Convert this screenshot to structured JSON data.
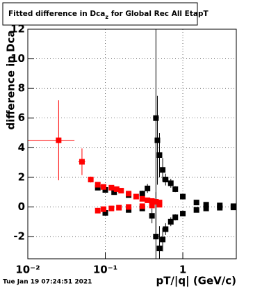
{
  "chart_data": {
    "type": "scatter",
    "title": [
      "Fitted difference in Dca",
      "z",
      " for Global Rec All EtapT"
    ],
    "ylabel": "difference in Dca",
    "xlabel": "pT/|q| (GeV/c)",
    "footer": "Tue Jan 19 07:24:51 2021",
    "xscale": "log",
    "grid": true,
    "xlim": [
      0.01,
      4.9
    ],
    "ylim": [
      -3.5,
      12
    ],
    "xticks": [
      {
        "value": 0.01,
        "label": "10⁻²"
      },
      {
        "value": 0.1,
        "label": "10⁻¹"
      },
      1
    ],
    "yticks": [
      -2,
      0,
      2,
      4,
      6,
      8,
      10,
      12
    ],
    "series": [
      {
        "name": "black",
        "color": "#000000",
        "x": [
          0.08,
          0.1,
          0.13,
          0.2,
          0.3,
          0.35,
          0.45,
          0.47,
          0.5,
          0.55,
          0.6,
          0.7,
          0.8,
          1.0,
          1.5,
          2,
          3,
          4.5,
          0.1,
          0.2,
          0.3,
          0.4,
          0.45,
          0.5,
          0.55,
          0.6,
          0.7,
          0.8,
          1.0,
          1.5,
          2,
          3,
          4.5
        ],
        "values": [
          1.3,
          1.15,
          1.0,
          0.8,
          0.9,
          1.25,
          6,
          4.5,
          3.5,
          2.5,
          1.85,
          1.6,
          1.2,
          0.7,
          0.3,
          0.15,
          0.1,
          0.05,
          -0.4,
          -0.2,
          -0.1,
          -0.6,
          -2,
          -2.8,
          -2.2,
          -1.5,
          -1.0,
          -0.7,
          -0.45,
          -0.2,
          -0.1,
          -0.05,
          -0.03
        ],
        "yerr": [
          0.1,
          0.1,
          0.1,
          0.1,
          0.2,
          0.3,
          8,
          3,
          1.5,
          0.8,
          0.4,
          0.3,
          0.2,
          0.1,
          0.1,
          0.05,
          0.05,
          0.05,
          0.1,
          0.1,
          0.1,
          0.5,
          3,
          1.5,
          0.8,
          0.4,
          0.3,
          0.2,
          0.1,
          0.1,
          0.05,
          0.05,
          0.05
        ]
      },
      {
        "name": "red",
        "color": "#ff0000",
        "x": [
          0.025,
          0.05,
          0.065,
          0.08,
          0.095,
          0.12,
          0.14,
          0.16,
          0.2,
          0.25,
          0.3,
          0.35,
          0.4,
          0.45,
          0.5,
          0.08,
          0.095,
          0.12,
          0.15,
          0.2,
          0.3,
          0.4,
          0.5
        ],
        "values": [
          4.5,
          3.05,
          1.85,
          1.5,
          1.35,
          1.3,
          1.2,
          1.1,
          0.9,
          0.7,
          0.55,
          0.45,
          0.4,
          0.35,
          0.3,
          -0.25,
          -0.15,
          -0.1,
          -0.05,
          0,
          0.05,
          0.1,
          0.15
        ],
        "yerr": [
          2.7,
          0.9,
          0.2,
          0.1,
          0.1,
          0.1,
          0.1,
          0.1,
          0.1,
          0.1,
          0.1,
          0.1,
          0.1,
          0.1,
          0.1,
          0.1,
          0.1,
          0.1,
          0.1,
          0.1,
          0.1,
          0.1,
          0.1
        ],
        "xerr": [
          0.015,
          0.005,
          null,
          null,
          null,
          null,
          null,
          null,
          null,
          null,
          null,
          null,
          null,
          null,
          null,
          null,
          null,
          null,
          null,
          null,
          null,
          null,
          null
        ]
      }
    ]
  }
}
